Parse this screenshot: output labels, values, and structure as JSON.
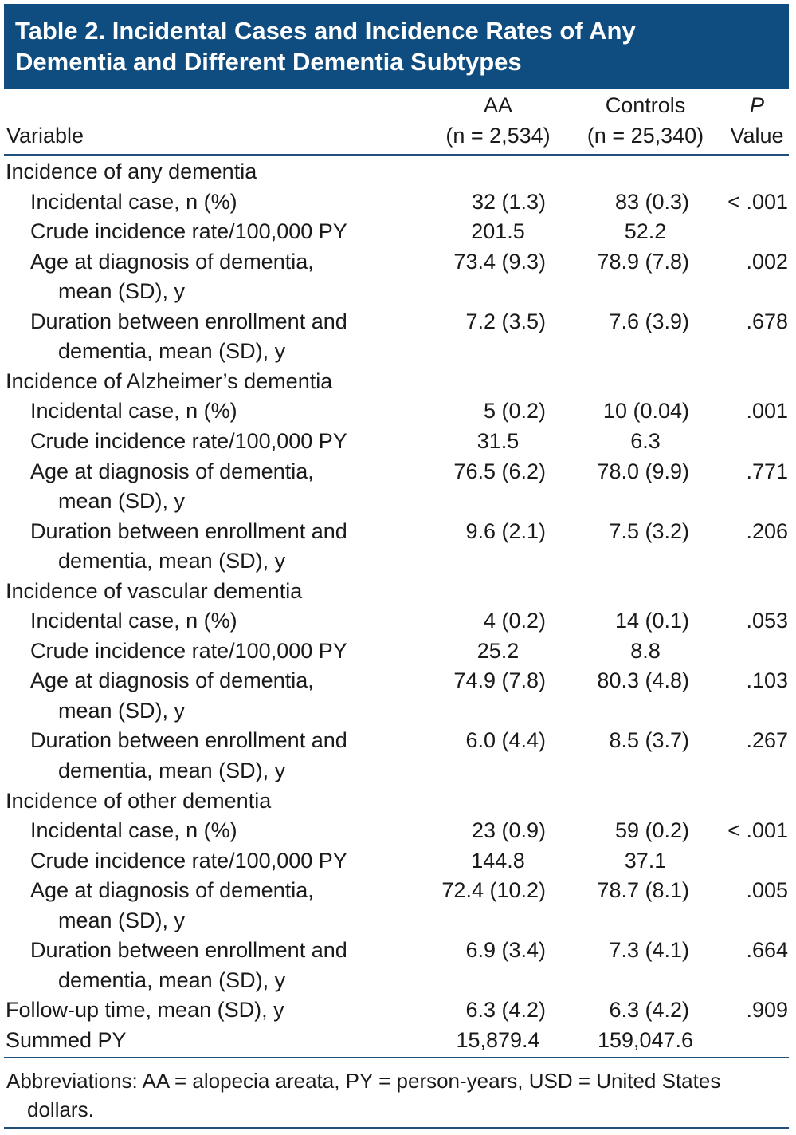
{
  "title": {
    "line1": "Table 2. Incidental Cases and Incidence Rates of Any",
    "line2": "Dementia and Different Dementia Subtypes"
  },
  "header": {
    "variable": "Variable",
    "aa_name": "AA",
    "aa_n": "(n = 2,534)",
    "controls_name": "Controls",
    "controls_n": "(n = 25,340)",
    "p_line1": "P",
    "p_line2": "Value"
  },
  "rows": [
    {
      "label": "Incidence of any dementia"
    },
    {
      "label": "Incidental case, n (%)",
      "aa": "32 (1.3)",
      "controls": "83 (0.3)",
      "p": "< .001"
    },
    {
      "label": "Crude incidence rate/100,000 PY",
      "aa": "201.5",
      "controls": "52.2",
      "p": ""
    },
    {
      "label": "Age at diagnosis of dementia,",
      "aa": "73.4 (9.3)",
      "controls": "78.9 (7.8)",
      "p": ".002"
    },
    {
      "label": "mean (SD), y"
    },
    {
      "label": "Duration between enrollment and",
      "aa": "7.2 (3.5)",
      "controls": "7.6 (3.9)",
      "p": ".678"
    },
    {
      "label": "dementia, mean (SD), y"
    },
    {
      "label": "Incidence of Alzheimer’s dementia"
    },
    {
      "label": "Incidental case, n (%)",
      "aa": "5 (0.2)",
      "controls": "10 (0.04)",
      "p": ".001"
    },
    {
      "label": "Crude incidence rate/100,000 PY",
      "aa": "31.5",
      "controls": "6.3",
      "p": ""
    },
    {
      "label": "Age at diagnosis of dementia,",
      "aa": "76.5 (6.2)",
      "controls": "78.0 (9.9)",
      "p": ".771"
    },
    {
      "label": "mean (SD), y"
    },
    {
      "label": "Duration between enrollment and",
      "aa": "9.6 (2.1)",
      "controls": "7.5 (3.2)",
      "p": ".206"
    },
    {
      "label": "dementia, mean (SD), y"
    },
    {
      "label": "Incidence of vascular dementia"
    },
    {
      "label": "Incidental case, n (%)",
      "aa": "4 (0.2)",
      "controls": "14 (0.1)",
      "p": ".053"
    },
    {
      "label": "Crude incidence rate/100,000 PY",
      "aa": "25.2",
      "controls": "8.8",
      "p": ""
    },
    {
      "label": "Age at diagnosis of dementia,",
      "aa": "74.9 (7.8)",
      "controls": "80.3 (4.8)",
      "p": ".103"
    },
    {
      "label": "mean (SD), y"
    },
    {
      "label": "Duration between enrollment and",
      "aa": "6.0 (4.4)",
      "controls": "8.5 (3.7)",
      "p": ".267"
    },
    {
      "label": "dementia, mean (SD), y"
    },
    {
      "label": "Incidence of other dementia"
    },
    {
      "label": "Incidental case, n (%)",
      "aa": "23 (0.9)",
      "controls": "59 (0.2)",
      "p": "< .001"
    },
    {
      "label": "Crude incidence rate/100,000 PY",
      "aa": "144.8",
      "controls": "37.1",
      "p": ""
    },
    {
      "label": "Age at diagnosis of dementia,",
      "aa": "72.4 (10.2)",
      "controls": "78.7 (8.1)",
      "p": ".005"
    },
    {
      "label": "mean (SD), y"
    },
    {
      "label": "Duration between enrollment and",
      "aa": "6.9 (3.4)",
      "controls": "7.3 (4.1)",
      "p": ".664"
    },
    {
      "label": "dementia, mean (SD), y"
    },
    {
      "label": "Follow-up time, mean (SD), y",
      "aa": "6.3 (4.2)",
      "controls": "6.3 (4.2)",
      "p": ".909"
    },
    {
      "label": "Summed PY",
      "aa": "15,879.4",
      "controls": "159,047.6",
      "p": ""
    }
  ],
  "footnote": {
    "line1": "Abbreviations: AA = alopecia areata, PY = person-years, USD = United States",
    "line2": "dollars."
  }
}
